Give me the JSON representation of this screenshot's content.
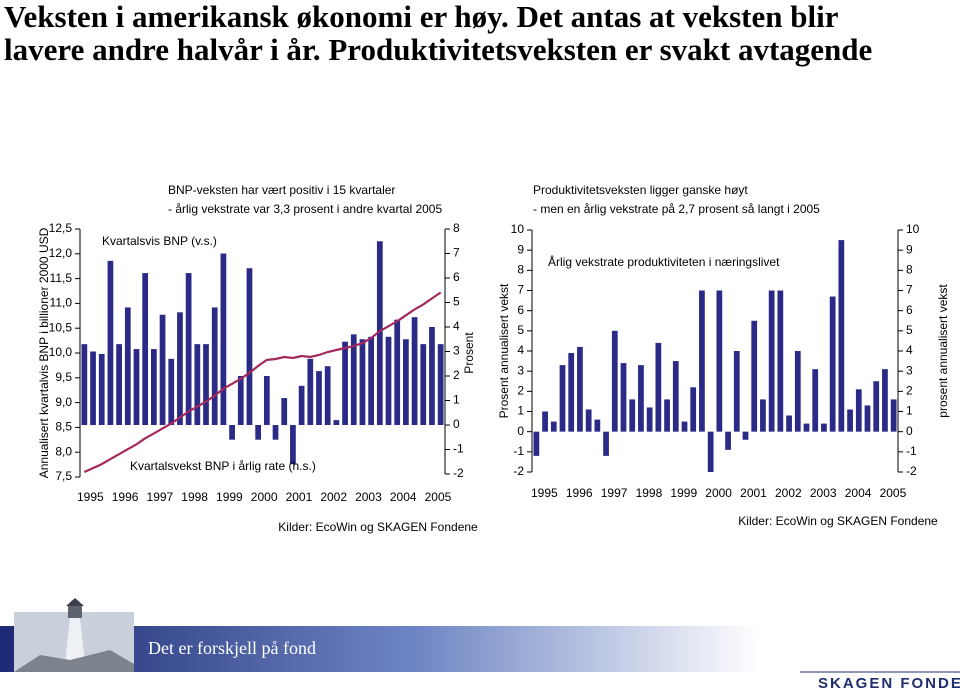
{
  "header": {
    "title": [
      "Veksten i amerikansk økonomi er høy. Det antas at veksten blir",
      "lavere andre halvår i år. Produktivitetsveksten er svakt avtagende"
    ]
  },
  "chart_data": [
    {
      "type": "combo",
      "title": "BNP-veksten har vært positiv i 15 kvartaler",
      "subtitle": "- årlig vekstrate var 3,3 prosent i andre kvartal 2005",
      "source": "Kilder: EcoWin og SKAGEN Fondene",
      "ylabel": "Annualisert kvartalvis BNP i billioner 2000 USD",
      "y2label": "Prosent",
      "categories": [
        "1995",
        null,
        null,
        null,
        "1996",
        null,
        null,
        null,
        "1997",
        null,
        null,
        null,
        "1998",
        null,
        null,
        null,
        "1999",
        null,
        null,
        null,
        "2000",
        null,
        null,
        null,
        "2001",
        null,
        null,
        null,
        "2002",
        null,
        null,
        null,
        "2003",
        null,
        null,
        null,
        "2004",
        null,
        null,
        null,
        "2005",
        null
      ],
      "ylim": [
        7.5,
        12.5
      ],
      "yticks": [
        {
          "value": 7.5,
          "label": "7,5"
        },
        {
          "value": 8,
          "label": "8,0"
        },
        {
          "value": 8.5,
          "label": "8,5"
        },
        {
          "value": 9,
          "label": "9,0"
        },
        {
          "value": 9.5,
          "label": "9,5"
        },
        {
          "value": 10,
          "label": "10,0"
        },
        {
          "value": 10.5,
          "label": "10,5"
        },
        {
          "value": 11,
          "label": "11,0"
        },
        {
          "value": 11.5,
          "label": "11,5"
        },
        {
          "value": 12,
          "label": "12,0"
        },
        {
          "value": 12.5,
          "label": "12,5"
        }
      ],
      "y2lim": [
        -2,
        8
      ],
      "y2ticks": [
        -2,
        -1,
        0,
        1,
        2,
        3,
        4,
        5,
        6,
        7,
        8
      ],
      "series": [
        {
          "name": "Kvartalsvis BNP (v.s.)",
          "kind": "line",
          "axis": "y",
          "color": "#a3285c",
          "values": [
            7.6,
            7.68,
            7.76,
            7.86,
            7.96,
            8.06,
            8.16,
            8.28,
            8.38,
            8.48,
            8.58,
            8.7,
            8.82,
            8.92,
            9.02,
            9.14,
            9.28,
            9.38,
            9.48,
            9.6,
            9.74,
            9.86,
            9.88,
            9.92,
            9.9,
            9.94,
            9.92,
            9.96,
            10.02,
            10.06,
            10.1,
            10.14,
            10.2,
            10.3,
            10.44,
            10.54,
            10.64,
            10.76,
            10.88,
            10.98,
            11.1,
            11.22
          ]
        },
        {
          "name": "Kvartalsvekst BNP i årlig rate (h.s.)",
          "kind": "bar",
          "axis": "y2",
          "color": "#2b2a86",
          "values": [
            3.3,
            3.0,
            2.9,
            6.7,
            3.3,
            4.8,
            3.1,
            6.2,
            3.1,
            4.5,
            2.7,
            4.6,
            6.2,
            3.3,
            3.3,
            4.8,
            7.0,
            -0.6,
            2.0,
            6.4,
            -0.6,
            2.0,
            -0.6,
            1.1,
            -1.6,
            1.6,
            2.7,
            2.2,
            2.4,
            0.2,
            3.4,
            3.7,
            3.5,
            3.6,
            7.5,
            3.6,
            4.3,
            3.5,
            4.4,
            3.3,
            4.0,
            3.3
          ]
        }
      ]
    },
    {
      "type": "bar",
      "title": "Produktivitetsveksten ligger ganske høyt",
      "subtitle": "- men en årlig vekstrate på 2,7 prosent så langt i 2005",
      "source": "Kilder: EcoWin og SKAGEN Fondene",
      "ylabel": "Prosent annualisert vekst",
      "y2label": "prosent annualisert vekst",
      "categories": [
        "1995",
        null,
        null,
        null,
        "1996",
        null,
        null,
        null,
        "1997",
        null,
        null,
        null,
        "1998",
        null,
        null,
        null,
        "1999",
        null,
        null,
        null,
        "2000",
        null,
        null,
        null,
        "2001",
        null,
        null,
        null,
        "2002",
        null,
        null,
        null,
        "2003",
        null,
        null,
        null,
        "2004",
        null,
        null,
        null,
        "2005",
        null
      ],
      "ylim": [
        -2,
        10
      ],
      "yticks": [
        -2,
        -1,
        0,
        1,
        2,
        3,
        4,
        5,
        6,
        7,
        8,
        9,
        10
      ],
      "y2lim": [
        -2,
        10
      ],
      "y2ticks": [
        -2,
        -1,
        0,
        1,
        2,
        3,
        4,
        5,
        6,
        7,
        8,
        9,
        10
      ],
      "series": [
        {
          "name": "Årlig vekstrate produktiviteten i næringslivet",
          "kind": "bar",
          "axis": "y",
          "color": "#2b2a86",
          "values": [
            -1.2,
            1.0,
            0.5,
            3.3,
            3.9,
            4.2,
            1.1,
            0.6,
            -1.2,
            5.0,
            3.4,
            1.6,
            3.3,
            1.2,
            4.4,
            1.6,
            3.5,
            0.5,
            2.2,
            7.0,
            -2.0,
            7.0,
            -0.9,
            4.0,
            -0.4,
            5.5,
            1.6,
            7.0,
            7.0,
            0.8,
            4.0,
            0.4,
            3.1,
            0.4,
            6.7,
            9.5,
            1.1,
            2.1,
            1.3,
            2.5,
            3.1,
            1.6
          ]
        }
      ]
    }
  ],
  "footer": {
    "slogan": "Det er forskjell på fond",
    "logo": "SKAGEN FONDENE"
  }
}
